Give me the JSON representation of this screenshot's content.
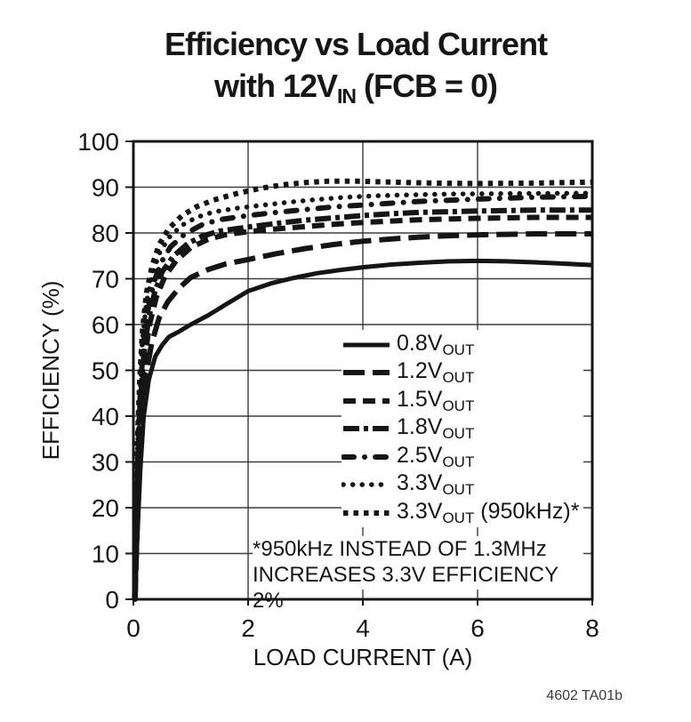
{
  "title": {
    "line1": "Efficiency vs Load Current",
    "line2_prefix": "with 12V",
    "line2_sub": "IN",
    "line2_suffix": " (FCB = 0)"
  },
  "footer_code": "4602 TA01b",
  "chart_data": {
    "type": "line",
    "title": "Efficiency vs Load Current with 12VIN (FCB = 0)",
    "xlabel": "LOAD CURRENT (A)",
    "ylabel": "EFFICIENCY (%)",
    "xlim": [
      0,
      8
    ],
    "ylim": [
      0,
      100
    ],
    "xticks": [
      0,
      2,
      4,
      6,
      8
    ],
    "yticks": [
      0,
      10,
      20,
      30,
      40,
      50,
      60,
      70,
      80,
      90,
      100
    ],
    "grid": true,
    "legend_position": "inside-lower-right",
    "line_color": "#151515",
    "background_color": "#ffffff",
    "footnote_lines": [
      "*950kHz INSTEAD OF 1.3MHz",
      "INCREASES 3.3V EFFICIENCY 2%"
    ],
    "series": [
      {
        "name": "0.8VOUT",
        "label": "0.8V",
        "label_sub": "OUT",
        "label_suffix": "",
        "style": "solid",
        "points": [
          [
            0.03,
            0
          ],
          [
            0.07,
            14
          ],
          [
            0.12,
            28
          ],
          [
            0.18,
            40
          ],
          [
            0.27,
            48
          ],
          [
            0.38,
            53
          ],
          [
            0.5,
            55.5
          ],
          [
            0.62,
            57.3
          ],
          [
            0.8,
            58.5
          ],
          [
            1.0,
            60
          ],
          [
            1.3,
            62
          ],
          [
            1.6,
            64.3
          ],
          [
            2.0,
            67.3
          ],
          [
            2.4,
            69
          ],
          [
            2.8,
            70.2
          ],
          [
            3.2,
            71.2
          ],
          [
            3.6,
            71.9
          ],
          [
            4.0,
            72.5
          ],
          [
            4.5,
            73.1
          ],
          [
            5.0,
            73.5
          ],
          [
            5.5,
            73.8
          ],
          [
            6.0,
            73.9
          ],
          [
            6.5,
            73.8
          ],
          [
            7.0,
            73.6
          ],
          [
            7.5,
            73.3
          ],
          [
            8.0,
            73
          ]
        ]
      },
      {
        "name": "1.2VOUT",
        "label": "1.2V",
        "label_sub": "OUT",
        "label_suffix": "",
        "style": "long-dash",
        "points": [
          [
            0.03,
            0
          ],
          [
            0.06,
            14
          ],
          [
            0.1,
            28
          ],
          [
            0.15,
            40
          ],
          [
            0.22,
            49
          ],
          [
            0.32,
            56
          ],
          [
            0.45,
            61.5
          ],
          [
            0.6,
            65
          ],
          [
            0.8,
            68
          ],
          [
            1.0,
            70.3
          ],
          [
            1.3,
            72
          ],
          [
            1.6,
            73.2
          ],
          [
            2.0,
            74.2
          ],
          [
            2.5,
            75.5
          ],
          [
            3.0,
            76.6
          ],
          [
            3.5,
            77.5
          ],
          [
            4.0,
            78.2
          ],
          [
            4.5,
            78.7
          ],
          [
            5.0,
            79.1
          ],
          [
            5.5,
            79.4
          ],
          [
            6.0,
            79.6
          ],
          [
            7.0,
            79.8
          ],
          [
            8.0,
            79.8
          ]
        ]
      },
      {
        "name": "1.5VOUT",
        "label": "1.5V",
        "label_sub": "OUT",
        "label_suffix": "",
        "style": "dash",
        "points": [
          [
            0.03,
            0
          ],
          [
            0.05,
            14
          ],
          [
            0.09,
            30
          ],
          [
            0.13,
            42
          ],
          [
            0.19,
            52
          ],
          [
            0.28,
            60
          ],
          [
            0.4,
            66
          ],
          [
            0.55,
            70.5
          ],
          [
            0.75,
            74
          ],
          [
            1.0,
            76.8
          ],
          [
            1.3,
            78.6
          ],
          [
            1.6,
            79.6
          ],
          [
            2.0,
            80.3
          ],
          [
            2.5,
            80.9
          ],
          [
            3.0,
            81.4
          ],
          [
            3.5,
            81.9
          ],
          [
            4.0,
            82.3
          ],
          [
            4.5,
            82.6
          ],
          [
            5.0,
            82.9
          ],
          [
            6.0,
            83.2
          ],
          [
            7.0,
            83.4
          ],
          [
            8.0,
            83.4
          ]
        ]
      },
      {
        "name": "1.8VOUT",
        "label": "1.8V",
        "label_sub": "OUT",
        "label_suffix": "",
        "style": "dash-dot",
        "points": [
          [
            0.03,
            0
          ],
          [
            0.05,
            15
          ],
          [
            0.08,
            30
          ],
          [
            0.12,
            43
          ],
          [
            0.18,
            53
          ],
          [
            0.26,
            61
          ],
          [
            0.37,
            67
          ],
          [
            0.5,
            71.5
          ],
          [
            0.7,
            75
          ],
          [
            0.95,
            77.7
          ],
          [
            1.2,
            79.3
          ],
          [
            1.5,
            80.4
          ],
          [
            2.0,
            81.3
          ],
          [
            2.5,
            82.1
          ],
          [
            3.0,
            82.8
          ],
          [
            3.5,
            83.3
          ],
          [
            4.0,
            83.8
          ],
          [
            4.5,
            84.2
          ],
          [
            5.0,
            84.5
          ],
          [
            6.0,
            84.8
          ],
          [
            7.0,
            85
          ],
          [
            8.0,
            85
          ]
        ]
      },
      {
        "name": "2.5VOUT",
        "label": "2.5V",
        "label_sub": "OUT",
        "label_suffix": "",
        "style": "dash-dot-round",
        "points": [
          [
            0.03,
            0
          ],
          [
            0.05,
            16
          ],
          [
            0.08,
            32
          ],
          [
            0.12,
            45
          ],
          [
            0.17,
            55
          ],
          [
            0.25,
            63
          ],
          [
            0.35,
            69
          ],
          [
            0.48,
            73.5
          ],
          [
            0.65,
            77
          ],
          [
            0.9,
            79.8
          ],
          [
            1.2,
            81.8
          ],
          [
            1.5,
            82.9
          ],
          [
            2.0,
            83.8
          ],
          [
            2.5,
            84.5
          ],
          [
            3.0,
            85.1
          ],
          [
            3.5,
            85.7
          ],
          [
            4.0,
            86.1
          ],
          [
            4.5,
            86.5
          ],
          [
            5.0,
            86.9
          ],
          [
            6.0,
            87.4
          ],
          [
            7.0,
            87.8
          ],
          [
            8.0,
            88
          ]
        ]
      },
      {
        "name": "3.3VOUT",
        "label": "3.3V",
        "label_sub": "OUT",
        "label_suffix": "",
        "style": "dotted-round",
        "points": [
          [
            0.02,
            0
          ],
          [
            0.04,
            16
          ],
          [
            0.07,
            32
          ],
          [
            0.11,
            46
          ],
          [
            0.16,
            57
          ],
          [
            0.23,
            65
          ],
          [
            0.33,
            71
          ],
          [
            0.45,
            75.5
          ],
          [
            0.62,
            79
          ],
          [
            0.85,
            81.7
          ],
          [
            1.1,
            83.4
          ],
          [
            1.4,
            84.6
          ],
          [
            1.8,
            85.4
          ],
          [
            2.2,
            86
          ],
          [
            2.7,
            86.7
          ],
          [
            3.2,
            87.3
          ],
          [
            3.7,
            87.8
          ],
          [
            4.2,
            88.1
          ],
          [
            4.7,
            88.3
          ],
          [
            5.5,
            88.5
          ],
          [
            6.5,
            88.6
          ],
          [
            8.0,
            88.7
          ]
        ]
      },
      {
        "name": "3.3VOUT (950kHz)*",
        "label": "3.3V",
        "label_sub": "OUT",
        "label_suffix": " (950kHz)*",
        "style": "dotted-square",
        "points": [
          [
            0.02,
            0
          ],
          [
            0.04,
            17
          ],
          [
            0.07,
            34
          ],
          [
            0.11,
            48
          ],
          [
            0.16,
            59
          ],
          [
            0.23,
            67
          ],
          [
            0.33,
            73
          ],
          [
            0.45,
            77.5
          ],
          [
            0.62,
            81
          ],
          [
            0.85,
            83.8
          ],
          [
            1.1,
            85.7
          ],
          [
            1.4,
            87.2
          ],
          [
            1.8,
            88.6
          ],
          [
            2.2,
            89.7
          ],
          [
            2.6,
            90.5
          ],
          [
            3.0,
            91
          ],
          [
            3.4,
            91.3
          ],
          [
            3.9,
            91.3
          ],
          [
            4.5,
            91.1
          ],
          [
            5.2,
            90.9
          ],
          [
            6.0,
            90.8
          ],
          [
            7.0,
            90.9
          ],
          [
            8.0,
            91.1
          ]
        ]
      }
    ]
  }
}
